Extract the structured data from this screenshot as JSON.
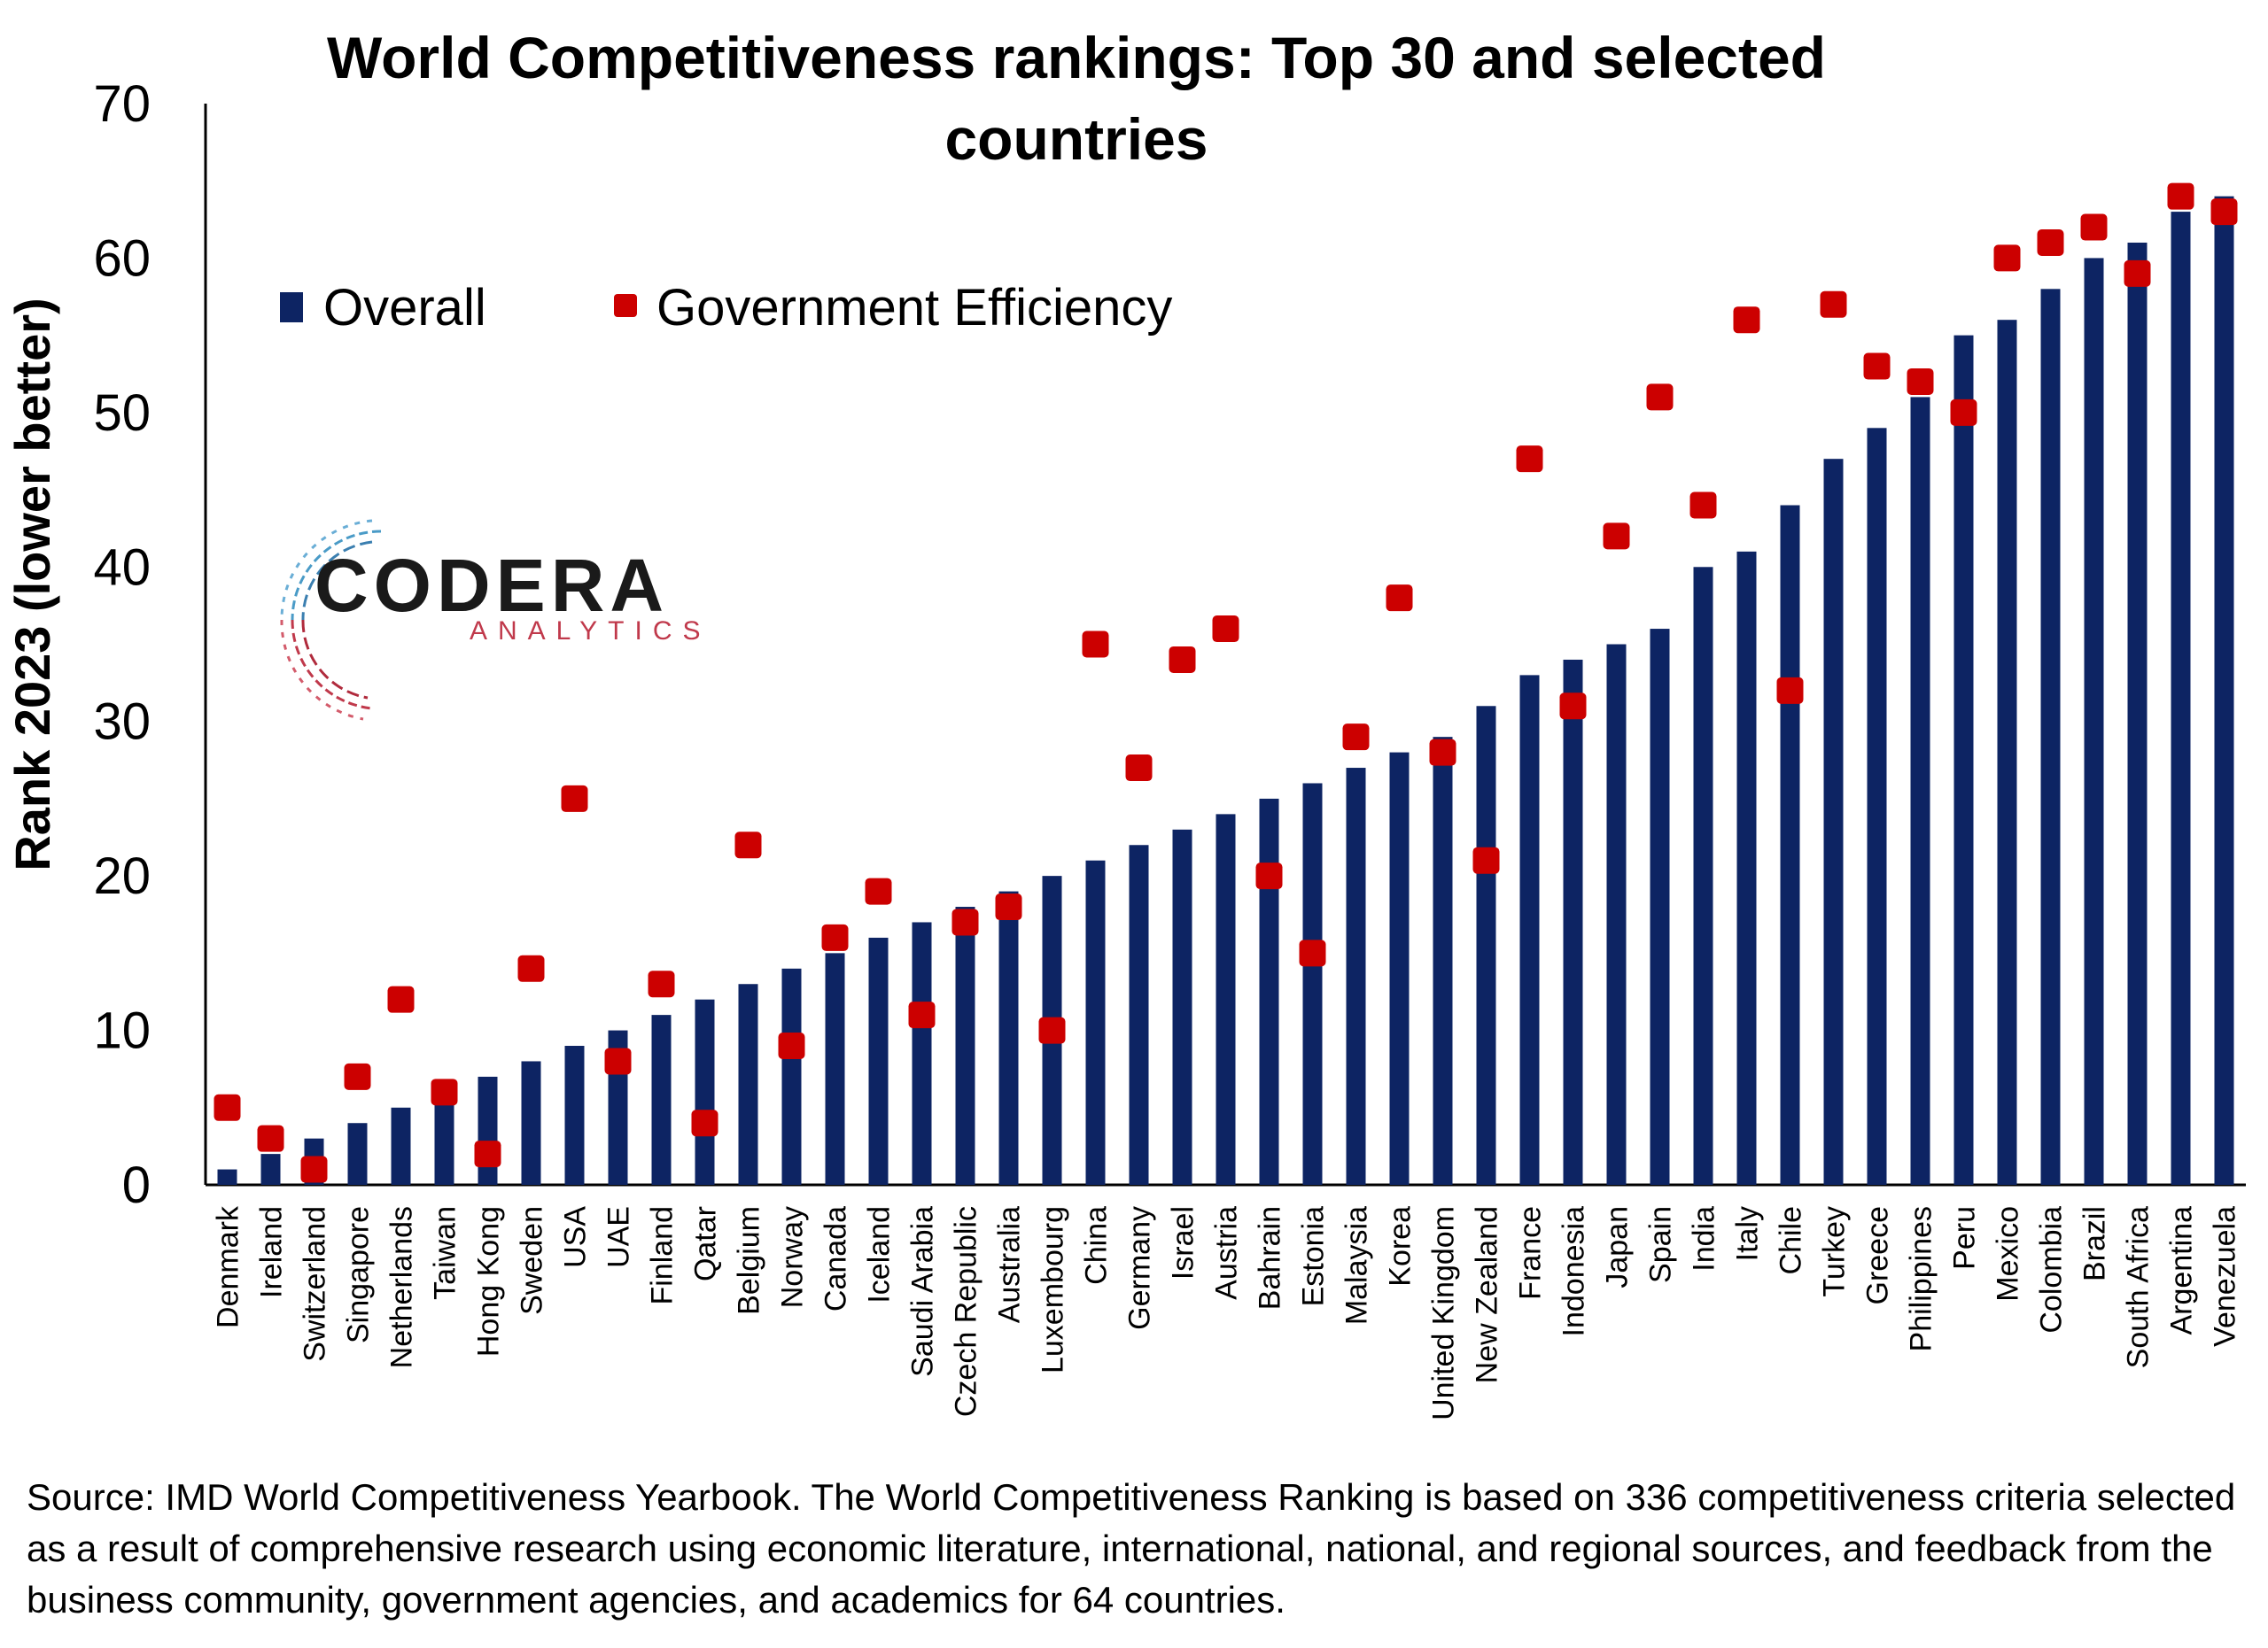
{
  "chart_data": {
    "type": "bar",
    "title": "World Competitiveness rankings: Top 30 and selected countries",
    "ylabel": "Rank 2023 (lower better)",
    "xlabel": "",
    "ylim": [
      0,
      70
    ],
    "yticks": [
      0,
      10,
      20,
      30,
      40,
      50,
      60,
      70
    ],
    "legend_position": "top-left",
    "categories": [
      "Denmark",
      "Ireland",
      "Switzerland",
      "Singapore",
      "Netherlands",
      "Taiwan",
      "Hong Kong",
      "Sweden",
      "USA",
      "UAE",
      "Finland",
      "Qatar",
      "Belgium",
      "Norway",
      "Canada",
      "Iceland",
      "Saudi Arabia",
      "Czech Republic",
      "Australia",
      "Luxembourg",
      "China",
      "Germany",
      "Israel",
      "Austria",
      "Bahrain",
      "Estonia",
      "Malaysia",
      "Korea",
      "United Kingdom",
      "New Zealand",
      "France",
      "Indonesia",
      "Japan",
      "Spain",
      "India",
      "Italy",
      "Chile",
      "Turkey",
      "Greece",
      "Philippines",
      "Peru",
      "Mexico",
      "Colombia",
      "Brazil",
      "South Africa",
      "Argentina",
      "Venezuela"
    ],
    "series": [
      {
        "name": "Overall",
        "kind": "bar",
        "color": "#0d2463",
        "values": [
          1,
          2,
          3,
          4,
          5,
          6,
          7,
          8,
          9,
          10,
          11,
          12,
          13,
          14,
          15,
          16,
          17,
          18,
          19,
          20,
          21,
          22,
          23,
          24,
          25,
          26,
          27,
          28,
          29,
          31,
          33,
          34,
          35,
          36,
          40,
          41,
          44,
          47,
          49,
          51,
          55,
          56,
          58,
          60,
          61,
          63,
          64
        ]
      },
      {
        "name": "Government Efficiency",
        "kind": "marker",
        "color": "#cc0000",
        "values": [
          5,
          3,
          1,
          7,
          12,
          6,
          2,
          14,
          25,
          8,
          13,
          4,
          22,
          9,
          16,
          19,
          11,
          17,
          18,
          10,
          35,
          27,
          34,
          36,
          20,
          15,
          29,
          38,
          28,
          21,
          47,
          31,
          42,
          51,
          44,
          56,
          32,
          57,
          53,
          52,
          50,
          60,
          61,
          62,
          59,
          64,
          63
        ]
      }
    ]
  },
  "logo": {
    "main": "CODERA",
    "sub": "ANALYTICS"
  },
  "source_text": "Source: IMD World Competitiveness Yearbook. The World Competitiveness Ranking is based on 336 competitiveness criteria selected as a result of comprehensive research using economic literature, international, national, and regional sources, and feedback from the business community, government agencies, and academics for 64 countries."
}
